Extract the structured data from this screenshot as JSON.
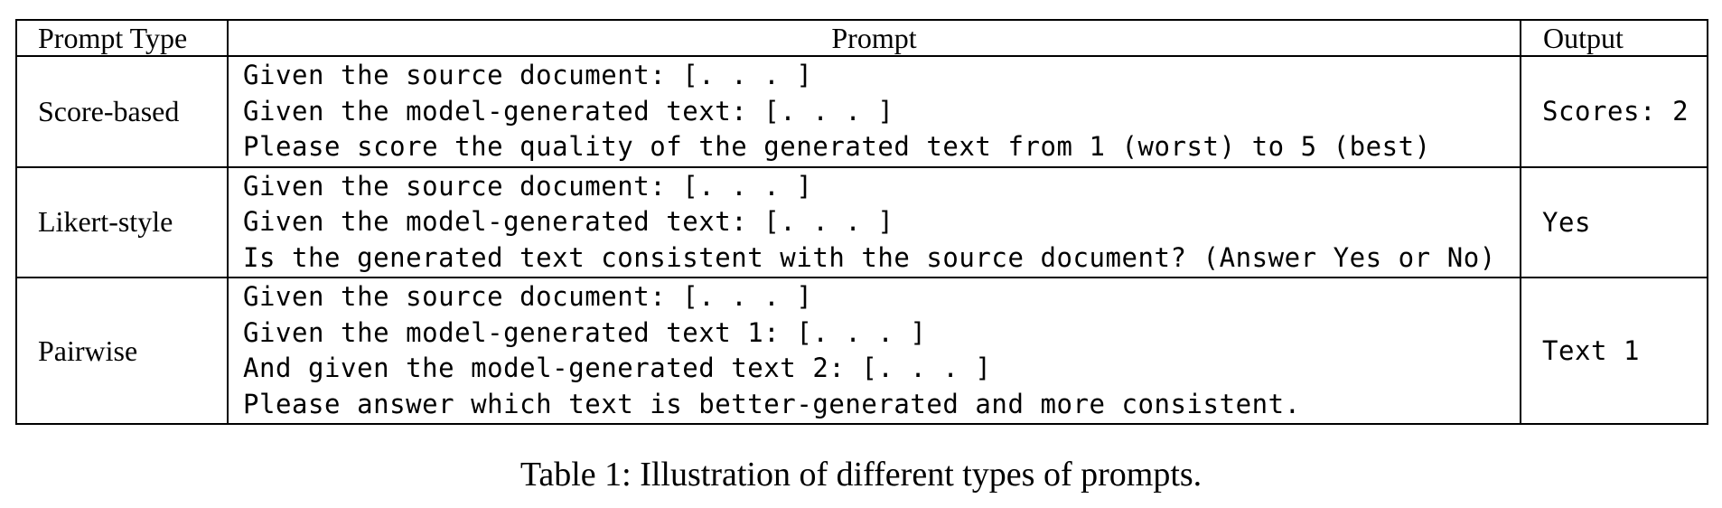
{
  "table": {
    "headers": {
      "type": "Prompt Type",
      "prompt": "Prompt",
      "output": "Output"
    },
    "rows": [
      {
        "type": "Score-based",
        "lines": [
          "Given the source document: [. . . ]",
          "Given the model-generated text: [. . . ]",
          "Please score the quality of the generated text from 1 (worst) to 5 (best)"
        ],
        "output": "Scores: 2"
      },
      {
        "type": "Likert-style",
        "lines": [
          "Given the source document: [. . . ]",
          "Given the model-generated text: [. . . ]",
          "Is the generated text consistent with the source document? (Answer Yes or No)"
        ],
        "output": "Yes"
      },
      {
        "type": "Pairwise",
        "lines": [
          "Given the source document: [. . . ]",
          "Given the model-generated text 1: [. . . ]",
          "And given the model-generated text 2: [. . . ]",
          "Please answer which text is better-generated and more consistent."
        ],
        "output": "Text 1"
      }
    ]
  },
  "caption": "Table 1: Illustration of different types of prompts."
}
